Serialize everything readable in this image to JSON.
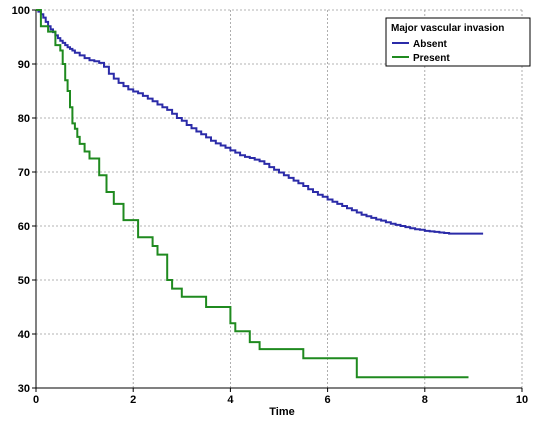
{
  "chart_data": {
    "type": "line",
    "step": true,
    "xlabel": "Time",
    "ylabel": "",
    "title": "",
    "xlim": [
      0,
      10
    ],
    "ylim": [
      30,
      100
    ],
    "x_ticks": [
      0,
      2,
      4,
      6,
      8,
      10
    ],
    "y_ticks": [
      30,
      40,
      50,
      60,
      70,
      80,
      90,
      100
    ],
    "grid": true,
    "legend": {
      "title": "Major vascular invasion",
      "placement": "top-right"
    },
    "series": [
      {
        "name": "Absent",
        "color": "#2b2ba8",
        "x": [
          0,
          0.05,
          0.1,
          0.15,
          0.2,
          0.25,
          0.3,
          0.35,
          0.4,
          0.45,
          0.5,
          0.55,
          0.6,
          0.65,
          0.7,
          0.75,
          0.8,
          0.9,
          1.0,
          1.1,
          1.2,
          1.3,
          1.4,
          1.5,
          1.6,
          1.7,
          1.8,
          1.9,
          2.0,
          2.1,
          2.2,
          2.3,
          2.4,
          2.5,
          2.6,
          2.7,
          2.8,
          2.9,
          3.0,
          3.1,
          3.2,
          3.3,
          3.4,
          3.5,
          3.6,
          3.7,
          3.8,
          3.9,
          4.0,
          4.1,
          4.2,
          4.3,
          4.4,
          4.5,
          4.6,
          4.7,
          4.8,
          4.9,
          5.0,
          5.1,
          5.2,
          5.3,
          5.4,
          5.5,
          5.6,
          5.7,
          5.8,
          5.9,
          6.0,
          6.1,
          6.2,
          6.3,
          6.4,
          6.5,
          6.6,
          6.7,
          6.8,
          6.9,
          7.0,
          7.1,
          7.2,
          7.3,
          7.4,
          7.5,
          7.6,
          7.7,
          7.8,
          7.9,
          8.0,
          8.1,
          8.2,
          8.3,
          8.4,
          8.5,
          8.6,
          8.7,
          9.2
        ],
        "values": [
          100,
          99.7,
          99.2,
          98.6,
          97.8,
          97.0,
          96.4,
          95.9,
          95.3,
          94.8,
          94.3,
          93.9,
          93.5,
          93.1,
          92.8,
          92.5,
          92.1,
          91.6,
          91.1,
          90.7,
          90.5,
          90.2,
          89.5,
          88.2,
          87.3,
          86.5,
          85.9,
          85.3,
          84.9,
          84.6,
          84.1,
          83.6,
          83.1,
          82.5,
          82.0,
          81.5,
          80.8,
          80.0,
          79.5,
          78.7,
          78.1,
          77.5,
          77.0,
          76.4,
          75.8,
          75.3,
          74.9,
          74.5,
          74.0,
          73.6,
          73.1,
          72.8,
          72.6,
          72.3,
          72.0,
          71.5,
          70.9,
          70.4,
          69.9,
          69.4,
          68.9,
          68.4,
          67.9,
          67.4,
          66.8,
          66.3,
          65.8,
          65.4,
          64.9,
          64.5,
          64.1,
          63.7,
          63.3,
          62.9,
          62.5,
          62.1,
          61.8,
          61.5,
          61.2,
          61.0,
          60.7,
          60.4,
          60.2,
          60.0,
          59.8,
          59.6,
          59.4,
          59.3,
          59.1,
          59.0,
          58.9,
          58.8,
          58.7,
          58.6,
          58.6,
          58.6,
          58.6
        ]
      },
      {
        "name": "Present",
        "color": "#1f8a1f",
        "x": [
          0,
          0.1,
          0.25,
          0.4,
          0.5,
          0.55,
          0.6,
          0.65,
          0.7,
          0.75,
          0.8,
          0.85,
          0.9,
          1.0,
          1.1,
          1.3,
          1.45,
          1.6,
          1.8,
          1.9,
          2.1,
          2.4,
          2.5,
          2.6,
          2.7,
          2.8,
          2.9,
          3.0,
          3.2,
          3.5,
          3.8,
          4.0,
          4.1,
          4.4,
          4.5,
          4.6,
          4.9,
          5.5,
          6.0,
          6.5,
          6.6,
          8.9
        ],
        "values": [
          100,
          97,
          96,
          93.5,
          92.5,
          90,
          87,
          85,
          82,
          79,
          78,
          76.5,
          75.2,
          73.8,
          72.5,
          69.4,
          66.3,
          64.1,
          61.1,
          61.1,
          57.9,
          56.3,
          54.7,
          54.7,
          50,
          48.4,
          48.4,
          46.9,
          46.9,
          45,
          45,
          42,
          40.5,
          38.5,
          38.5,
          37.2,
          37.2,
          35.5,
          35.5,
          35.5,
          32,
          32
        ]
      }
    ]
  }
}
